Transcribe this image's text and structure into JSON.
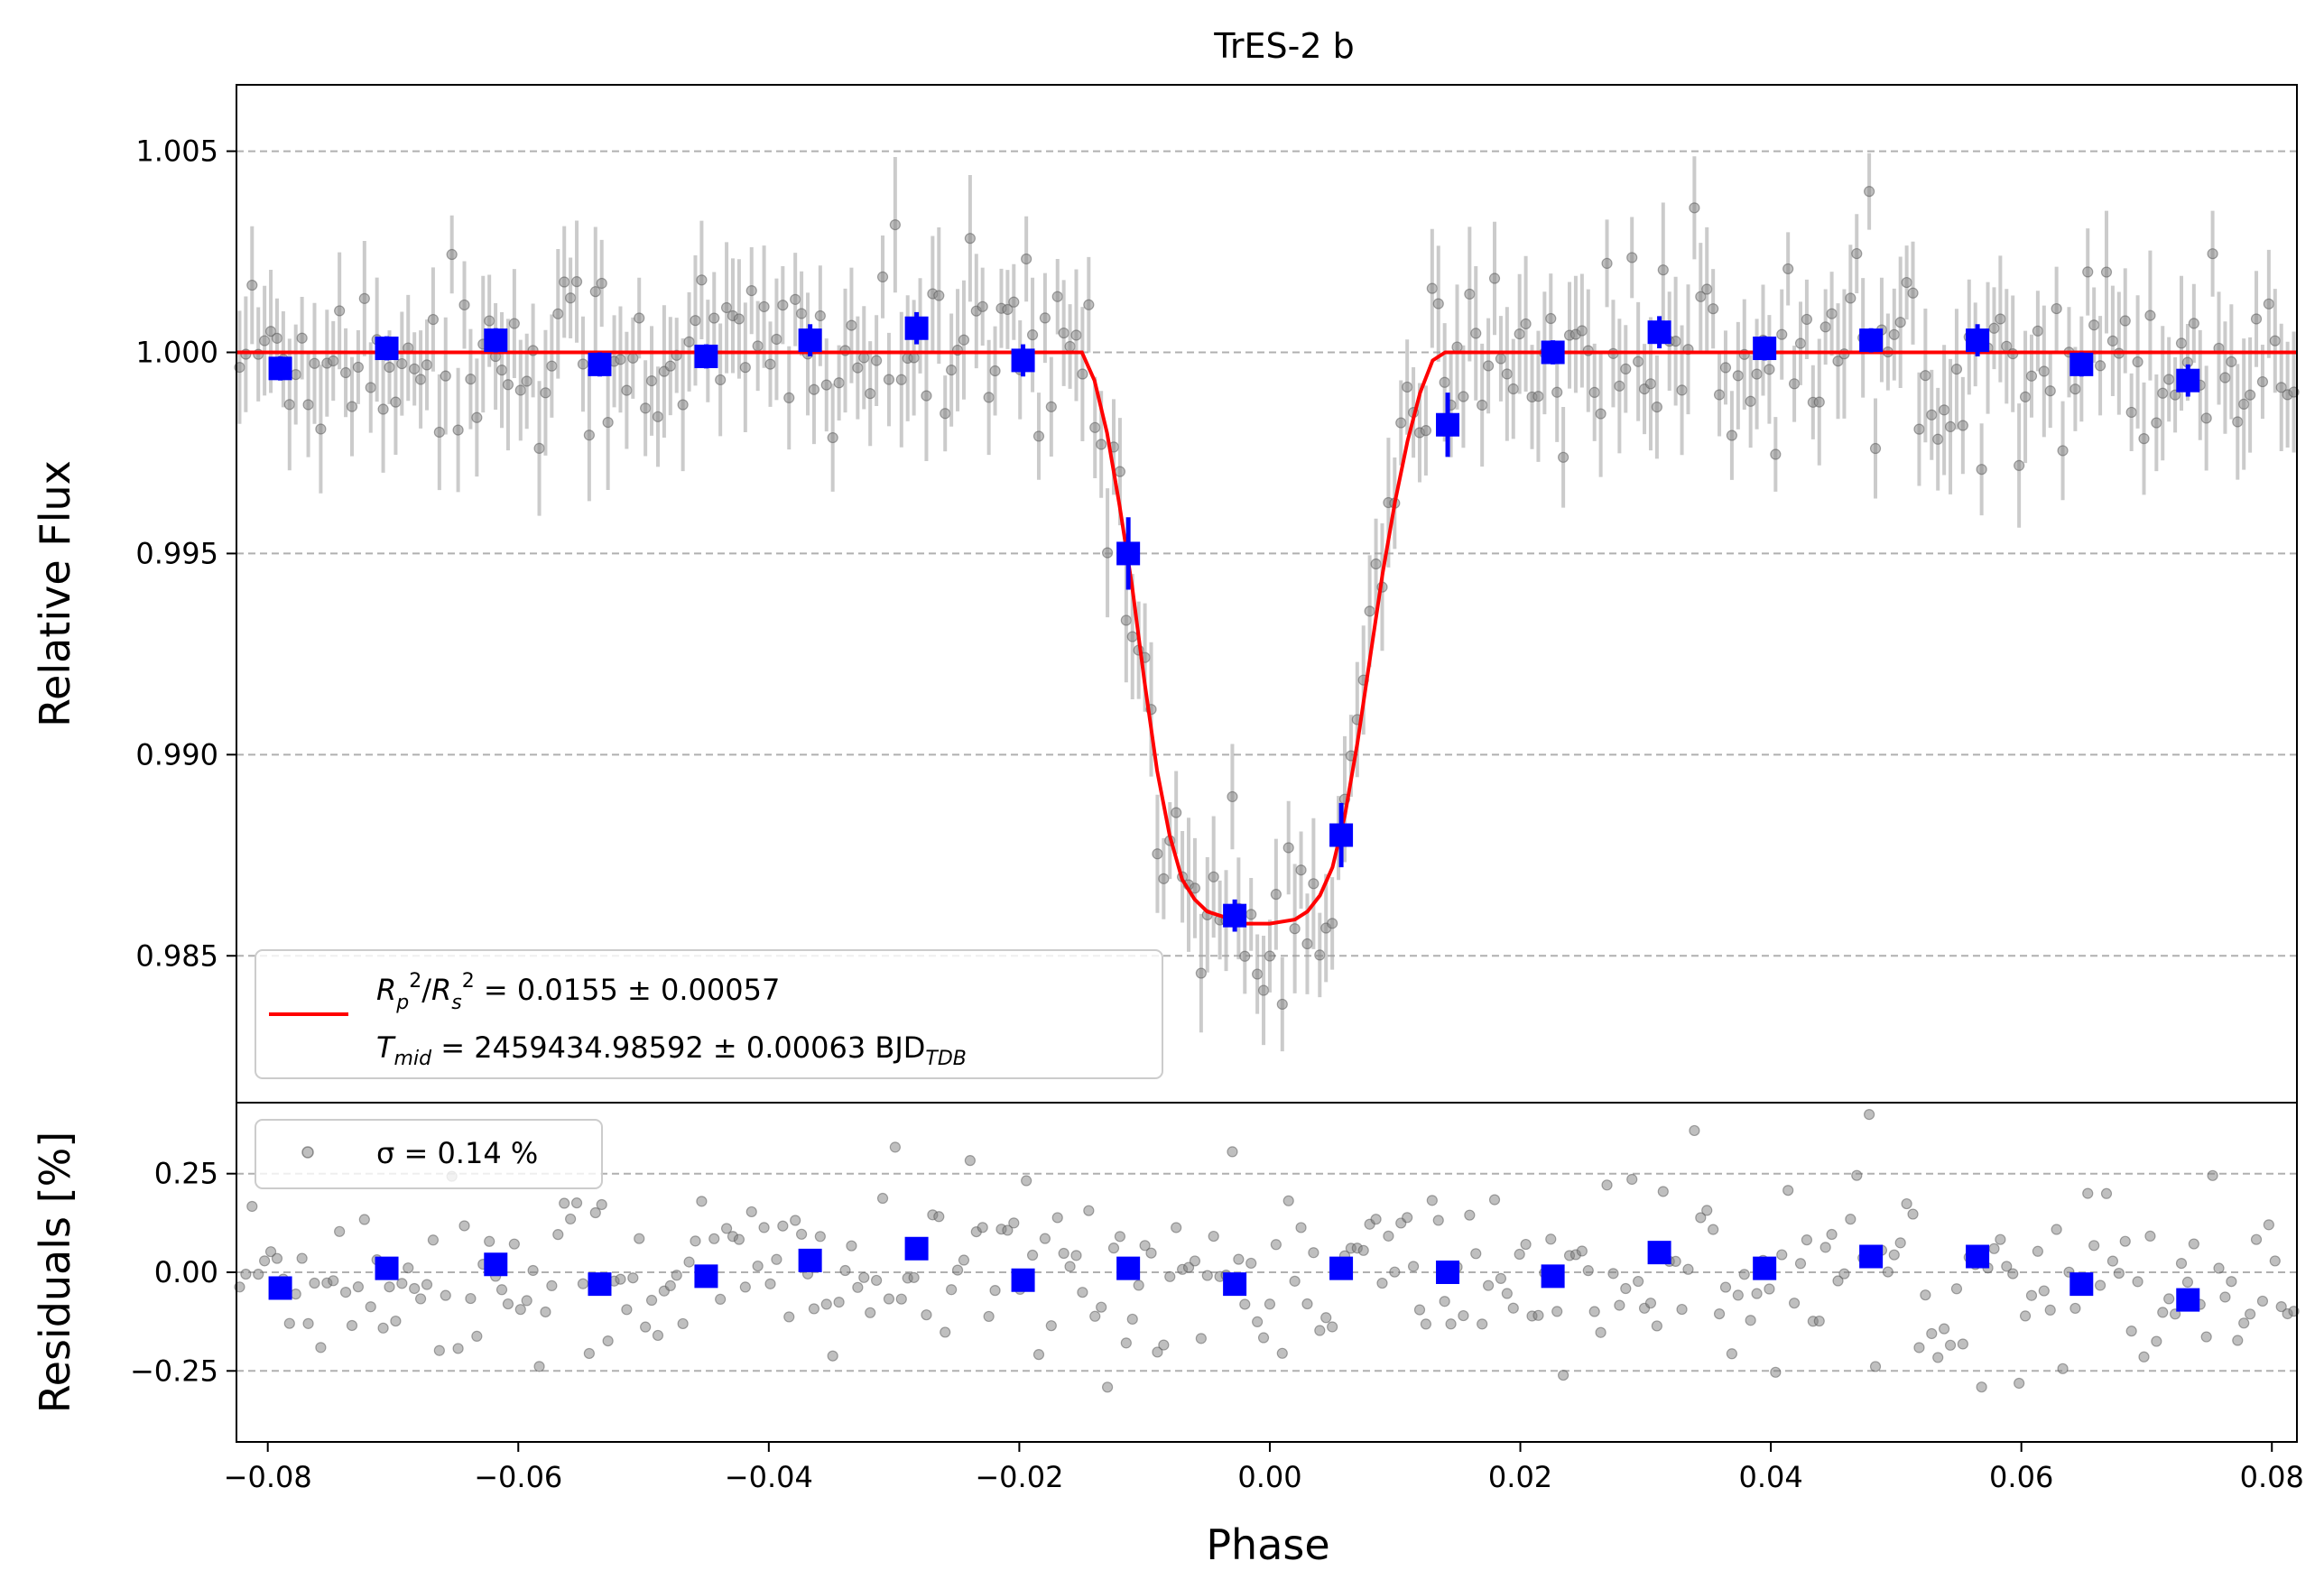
{
  "chart_data": {
    "type": "scatter",
    "title": "TrES-2 b",
    "xlabel": "Phase",
    "xlim": [
      -0.0825,
      0.082
    ],
    "x_ticks": [
      -0.08,
      -0.06,
      -0.04,
      -0.02,
      0.0,
      0.02,
      0.04,
      0.06,
      0.08
    ],
    "x_tick_labels": [
      "−0.08",
      "−0.06",
      "−0.04",
      "−0.02",
      "0.00",
      "0.02",
      "0.04",
      "0.06",
      "0.08"
    ],
    "grid": "horizontal dashed",
    "colors": {
      "raw": "#808080",
      "binned": "#0000ff",
      "model": "#ff0000",
      "grid": "#b0b0b0"
    },
    "top_panel": {
      "ylabel": "Relative Flux",
      "ylim": [
        0.98135,
        1.00665
      ],
      "y_ticks": [
        0.985,
        0.99,
        0.995,
        1.0,
        1.005
      ],
      "y_tick_labels": [
        "0.985",
        "0.990",
        "0.995",
        "1.000",
        "1.005"
      ],
      "model": {
        "type": "line",
        "color": "#ff0000",
        "x": [
          -0.0825,
          -0.015,
          -0.014,
          -0.013,
          -0.012,
          -0.011,
          -0.01,
          -0.009,
          -0.008,
          -0.007,
          -0.006,
          -0.005,
          -0.004,
          -0.003,
          -0.002,
          0.0,
          0.002,
          0.003,
          0.004,
          0.005,
          0.006,
          0.007,
          0.008,
          0.009,
          0.01,
          0.011,
          0.012,
          0.013,
          0.014,
          0.015,
          0.082
        ],
        "y": [
          1.0,
          1.0,
          0.9993,
          0.998,
          0.9962,
          0.9942,
          0.9918,
          0.9896,
          0.988,
          0.9869,
          0.9864,
          0.9861,
          0.986,
          0.9859,
          0.9858,
          0.9858,
          0.9859,
          0.9861,
          0.9865,
          0.9872,
          0.9885,
          0.9903,
          0.9924,
          0.9945,
          0.9963,
          0.9978,
          0.999,
          0.9998,
          1.0,
          1.0,
          1.0
        ]
      },
      "binned": {
        "x": [
          -0.079,
          -0.0705,
          -0.0618,
          -0.0535,
          -0.045,
          -0.0367,
          -0.0282,
          -0.0197,
          -0.0113,
          -0.0028,
          0.0057,
          0.0142,
          0.0226,
          0.0311,
          0.0395,
          0.048,
          0.0565,
          0.0648,
          0.0733
        ],
        "y": [
          0.9996,
          1.0001,
          1.0003,
          0.9997,
          0.9999,
          1.0003,
          1.0006,
          0.9998,
          0.995,
          0.986,
          0.988,
          0.9982,
          1.0,
          1.0005,
          1.0001,
          1.0003,
          1.0003,
          0.9997,
          0.9993
        ],
        "err": [
          0.0003,
          0.0003,
          0.0003,
          0.0003,
          0.0003,
          0.0004,
          0.0004,
          0.0004,
          0.0009,
          0.0004,
          0.0008,
          0.0008,
          0.0003,
          0.0004,
          0.0003,
          0.0003,
          0.0004,
          0.0003,
          0.0004
        ]
      },
      "legend": {
        "line1": "R²p/R²s = 0.0155 ± 0.00057",
        "line2": "Tmid = 2459434.98592 ± 0.00063 BJD_TDB",
        "placement": "lower-left"
      }
    },
    "bottom_panel": {
      "ylabel": "Residuals [%]",
      "ylim": [
        -0.43,
        0.43
      ],
      "y_ticks": [
        -0.25,
        0.0,
        0.25
      ],
      "y_tick_labels": [
        "−0.25",
        "0.00",
        "0.25"
      ],
      "binned": {
        "x": [
          -0.079,
          -0.0705,
          -0.0618,
          -0.0535,
          -0.045,
          -0.0367,
          -0.0282,
          -0.0197,
          -0.0113,
          -0.0028,
          0.0057,
          0.0142,
          0.0226,
          0.0311,
          0.0395,
          0.048,
          0.0565,
          0.0648,
          0.0733
        ],
        "y": [
          -0.04,
          0.01,
          0.02,
          -0.03,
          -0.01,
          0.03,
          0.06,
          -0.02,
          0.01,
          -0.03,
          0.01,
          0.0,
          -0.01,
          0.05,
          0.01,
          0.04,
          0.04,
          -0.03,
          -0.07
        ]
      },
      "legend": {
        "text": "σ = 0.14 %",
        "placement": "upper-left"
      }
    }
  }
}
